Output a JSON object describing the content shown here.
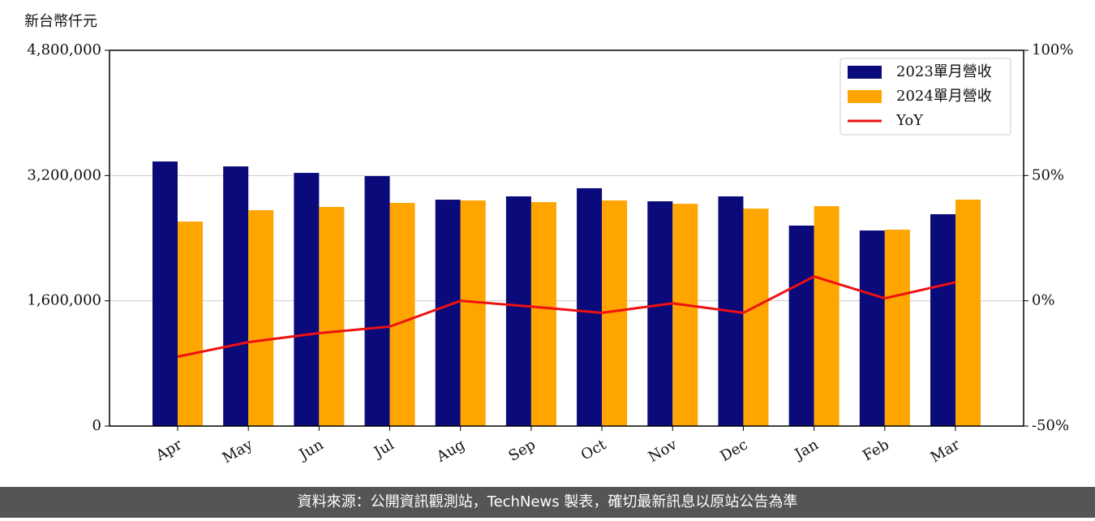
{
  "chart_data": {
    "type": "bar_line",
    "y_label": "新台幣仟元",
    "categories": [
      "Apr",
      "May",
      "Jun",
      "Jul",
      "Aug",
      "Sep",
      "Oct",
      "Nov",
      "Dec",
      "Jan",
      "Feb",
      "Mar"
    ],
    "series": [
      {
        "name": "2023單月營收",
        "type": "bar",
        "color": "#0a0a7a",
        "values": [
          3380000,
          3317000,
          3234000,
          3193000,
          2892000,
          2934000,
          3038000,
          2871000,
          2934000,
          2561000,
          2498000,
          2706000
        ]
      },
      {
        "name": "2024單月營收",
        "type": "bar",
        "color": "#ffa500",
        "values": [
          2612000,
          2758000,
          2799000,
          2851000,
          2882000,
          2861000,
          2882000,
          2840000,
          2778000,
          2809000,
          2509000,
          2892000
        ]
      },
      {
        "name": "YoY",
        "type": "line",
        "axis": "y2",
        "color": "#ee1111",
        "values": [
          -22.3,
          -16.5,
          -12.9,
          -10.3,
          0,
          -2.3,
          -4.8,
          -1,
          -4.8,
          9.7,
          1,
          7.4
        ]
      }
    ],
    "ylim": [
      0,
      4800000
    ],
    "yticks": [
      0,
      {
        "value": 1600000,
        "label": "1,600,000"
      },
      {
        "value": 3200000,
        "label": "3,200,000"
      },
      {
        "value": 4800000,
        "label": "4,800,000"
      }
    ],
    "y2lim": [
      -50,
      100
    ],
    "y2ticks": [
      {
        "value": -50,
        "label": "-50%"
      },
      {
        "value": 0,
        "label": "0%"
      },
      {
        "value": 50,
        "label": "50%"
      },
      {
        "value": 100,
        "label": "100%"
      }
    ],
    "grid": true,
    "legend": "upper right",
    "source": "資料來源：公開資訊觀測站，TechNews 製表，確切最新訊息以原站公告為準"
  }
}
